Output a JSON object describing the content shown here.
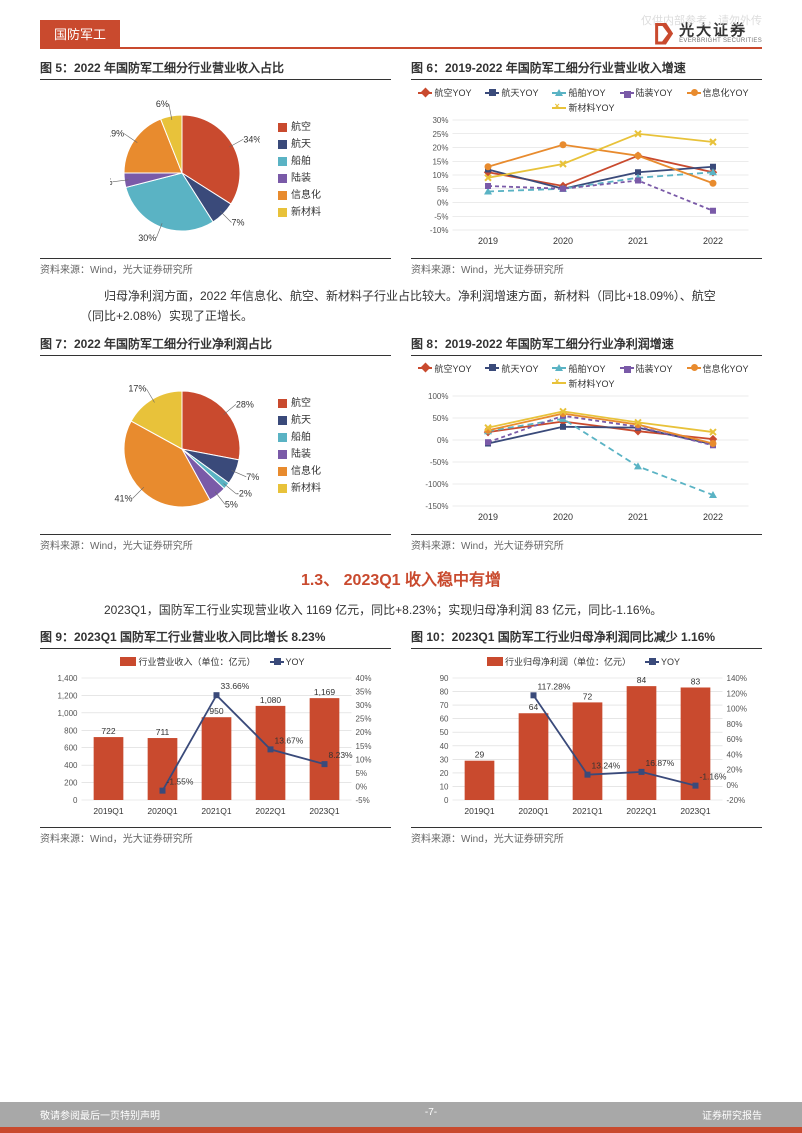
{
  "watermark": "仅供内部参考，请勿外传",
  "header": {
    "sector": "国防军工",
    "logo_cn": "光大证券",
    "logo_en": "EVERBRIGHT SECURITIES"
  },
  "colors": {
    "brand": "#c94a2e",
    "aviation": "#c94a2e",
    "aerospace": "#3a4a7a",
    "ship": "#5ab3c4",
    "land": "#7a5aa8",
    "info": "#e88b2e",
    "material": "#e8c23a",
    "grid": "#d8d8d8",
    "axis": "#888",
    "text": "#333",
    "bar": "#c94a2e"
  },
  "para1": "归母净利润方面，2022 年信息化、航空、新材料子行业占比较大。净利润增速方面，新材料（同比+18.09%）、航空（同比+2.08%）实现了正增长。",
  "section": "1.3、 2023Q1 收入稳中有增",
  "para2": "2023Q1，国防军工行业实现营业收入 1169 亿元，同比+8.23%；实现归母净利润 83 亿元，同比-1.16%。",
  "source": "资料来源：Wind，光大证券研究所",
  "fig5": {
    "title": "图 5：2022 年国防军工细分行业营业收入占比",
    "type": "pie",
    "slices": [
      {
        "label": "航空",
        "value": 34,
        "color": "#c94a2e"
      },
      {
        "label": "航天",
        "value": 7,
        "color": "#3a4a7a"
      },
      {
        "label": "船舶",
        "value": 30,
        "color": "#5ab3c4"
      },
      {
        "label": "陆装",
        "value": 4,
        "color": "#7a5aa8"
      },
      {
        "label": "信息化",
        "value": 19,
        "color": "#e88b2e"
      },
      {
        "label": "新材料",
        "value": 6,
        "color": "#e8c23a"
      }
    ]
  },
  "fig6": {
    "title": "图 6：2019-2022 年国防军工细分行业营业收入增速",
    "type": "line",
    "years": [
      "2019",
      "2020",
      "2021",
      "2022"
    ],
    "ylim": [
      -10,
      30
    ],
    "ytick": 5,
    "series": [
      {
        "name": "航空YOY",
        "color": "#c94a2e",
        "marker": "diamond",
        "dash": "",
        "values": [
          11,
          6,
          17,
          11
        ]
      },
      {
        "name": "航天YOY",
        "color": "#3a4a7a",
        "marker": "square",
        "dash": "",
        "values": [
          12,
          5,
          11,
          13
        ]
      },
      {
        "name": "船舶YOY",
        "color": "#5ab3c4",
        "marker": "triangle",
        "dash": "6,4",
        "values": [
          4,
          5,
          9,
          11
        ]
      },
      {
        "name": "陆装YOY",
        "color": "#7a5aa8",
        "marker": "square",
        "dash": "4,3",
        "values": [
          6,
          5,
          8,
          -3
        ]
      },
      {
        "name": "信息化YOY",
        "color": "#e88b2e",
        "marker": "circle",
        "dash": "",
        "values": [
          13,
          21,
          17,
          7
        ]
      },
      {
        "name": "新材料YOY",
        "color": "#e8c23a",
        "marker": "x",
        "dash": "",
        "values": [
          9,
          14,
          25,
          22
        ]
      }
    ]
  },
  "fig7": {
    "title": "图 7：2022 年国防军工细分行业净利润占比",
    "type": "pie",
    "slices": [
      {
        "label": "航空",
        "value": 28,
        "color": "#c94a2e"
      },
      {
        "label": "航天",
        "value": 7,
        "color": "#3a4a7a"
      },
      {
        "label": "船舶",
        "value": -2,
        "color": "#5ab3c4"
      },
      {
        "label": "陆装",
        "value": 5,
        "color": "#7a5aa8"
      },
      {
        "label": "信息化",
        "value": 41,
        "color": "#e88b2e"
      },
      {
        "label": "新材料",
        "value": 17,
        "color": "#e8c23a"
      }
    ]
  },
  "fig8": {
    "title": "图 8：2019-2022 年国防军工细分行业净利润增速",
    "type": "line",
    "years": [
      "2019",
      "2020",
      "2021",
      "2022"
    ],
    "ylim": [
      -150,
      100
    ],
    "ytick": 50,
    "series": [
      {
        "name": "航空YOY",
        "color": "#c94a2e",
        "marker": "diamond",
        "dash": "",
        "values": [
          18,
          42,
          20,
          2
        ]
      },
      {
        "name": "航天YOY",
        "color": "#3a4a7a",
        "marker": "square",
        "dash": "",
        "values": [
          -8,
          30,
          28,
          -10
        ]
      },
      {
        "name": "船舶YOY",
        "color": "#5ab3c4",
        "marker": "triangle",
        "dash": "6,4",
        "values": [
          20,
          48,
          -60,
          -125
        ]
      },
      {
        "name": "陆装YOY",
        "color": "#7a5aa8",
        "marker": "square",
        "dash": "4,3",
        "values": [
          -5,
          55,
          30,
          -12
        ]
      },
      {
        "name": "信息化YOY",
        "color": "#e88b2e",
        "marker": "circle",
        "dash": "",
        "values": [
          22,
          60,
          35,
          -8
        ]
      },
      {
        "name": "新材料YOY",
        "color": "#e8c23a",
        "marker": "x",
        "dash": "",
        "values": [
          28,
          65,
          40,
          18
        ]
      }
    ]
  },
  "fig9": {
    "title": "图 9：2023Q1 国防军工行业营业收入同比增长 8.23%",
    "type": "bar-line",
    "legend_bar": "行业营业收入（单位：亿元）",
    "legend_line": "YOY",
    "categories": [
      "2019Q1",
      "2020Q1",
      "2021Q1",
      "2022Q1",
      "2023Q1"
    ],
    "bar_values": [
      722,
      711,
      950,
      1080,
      1169
    ],
    "line_values": [
      null,
      -1.55,
      33.66,
      13.67,
      8.23
    ],
    "ylim_left": [
      0,
      1400
    ],
    "ytick_left": 200,
    "ylim_right": [
      -5,
      40
    ],
    "ytick_right": 5,
    "bar_color": "#c94a2e",
    "line_color": "#3a4a7a"
  },
  "fig10": {
    "title": "图 10：2023Q1 国防军工行业归母净利润同比减少 1.16%",
    "type": "bar-line",
    "legend_bar": "行业归母净利润（单位：亿元）",
    "legend_line": "YOY",
    "categories": [
      "2019Q1",
      "2020Q1",
      "2021Q1",
      "2022Q1",
      "2023Q1"
    ],
    "bar_values": [
      29,
      64,
      72,
      84,
      83
    ],
    "line_values": [
      null,
      117.28,
      13.24,
      16.87,
      -1.16
    ],
    "ylim_left": [
      0,
      90
    ],
    "ytick_left": 10,
    "ylim_right": [
      -20,
      140
    ],
    "ytick_right": 20,
    "bar_color": "#c94a2e",
    "line_color": "#3a4a7a"
  },
  "footer": {
    "left": "敬请参阅最后一页特别声明",
    "center": "-7-",
    "right": "证券研究报告"
  }
}
